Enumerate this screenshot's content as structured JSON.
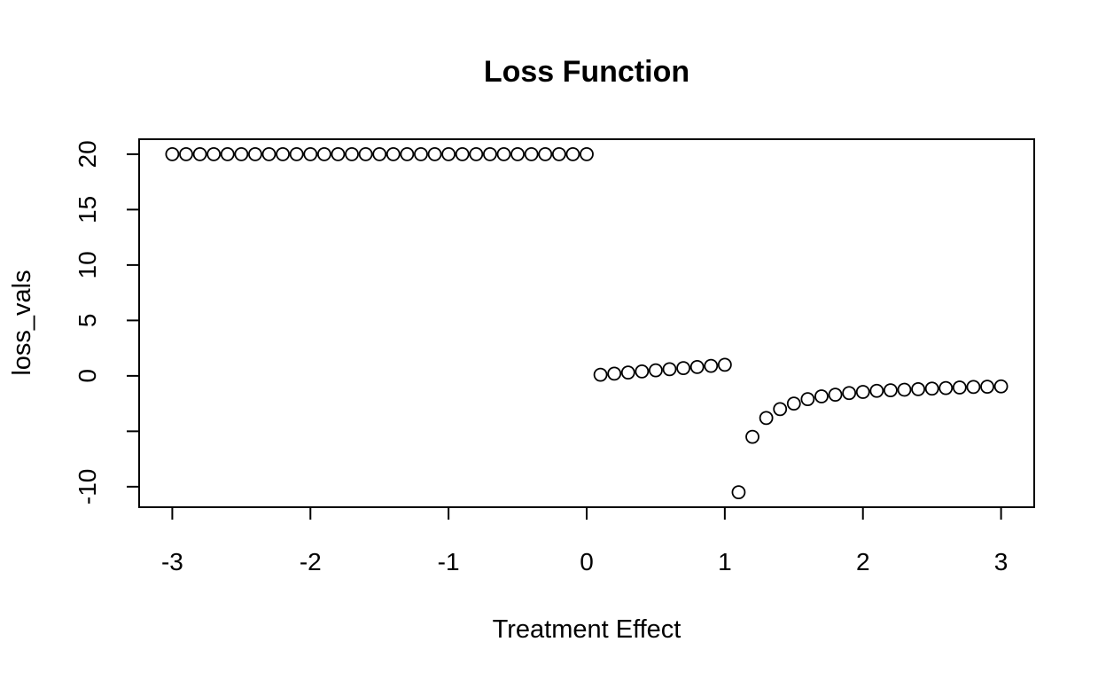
{
  "chart_data": {
    "type": "scatter",
    "title": "Loss Function",
    "xlabel": "Treatment Effect",
    "ylabel": "loss_vals",
    "xlim": [
      -3.24,
      3.24
    ],
    "ylim": [
      -11.85,
      21.35
    ],
    "xticks": [
      -3,
      -2,
      -1,
      0,
      1,
      2,
      3
    ],
    "xtick_labels": [
      "-3",
      "-2",
      "-1",
      "0",
      "1",
      "2",
      "3"
    ],
    "yticks": [
      -10,
      -5,
      0,
      5,
      10,
      15,
      20
    ],
    "ytick_labels": [
      "-10",
      "",
      "0",
      "5",
      "10",
      "15",
      "20"
    ],
    "grid": false,
    "legend": "none",
    "marker": "open-circle",
    "x": [
      -3.0,
      -2.9,
      -2.8,
      -2.7,
      -2.6,
      -2.5,
      -2.4,
      -2.3,
      -2.2,
      -2.1,
      -2.0,
      -1.9,
      -1.8,
      -1.7,
      -1.6,
      -1.5,
      -1.4,
      -1.3,
      -1.2,
      -1.1,
      -1.0,
      -0.9,
      -0.8,
      -0.7,
      -0.6,
      -0.5,
      -0.4,
      -0.3,
      -0.2,
      -0.1,
      0.0,
      0.1,
      0.2,
      0.3,
      0.4,
      0.5,
      0.6,
      0.7,
      0.8,
      0.9,
      1.0,
      1.1,
      1.2,
      1.3,
      1.4,
      1.5,
      1.6,
      1.7,
      1.8,
      1.9,
      2.0,
      2.1,
      2.2,
      2.3,
      2.4,
      2.5,
      2.6,
      2.7,
      2.8,
      2.9,
      3.0
    ],
    "y": [
      20,
      20,
      20,
      20,
      20,
      20,
      20,
      20,
      20,
      20,
      20,
      20,
      20,
      20,
      20,
      20,
      20,
      20,
      20,
      20,
      20,
      20,
      20,
      20,
      20,
      20,
      20,
      20,
      20,
      20,
      20,
      0.1,
      0.2,
      0.3,
      0.4,
      0.5,
      0.6,
      0.7,
      0.8,
      0.9,
      1.0,
      -10.5,
      -5.5,
      -3.8,
      -3.0,
      -2.5,
      -2.1,
      -1.85,
      -1.7,
      -1.55,
      -1.45,
      -1.35,
      -1.3,
      -1.25,
      -1.2,
      -1.15,
      -1.1,
      -1.05,
      -1.0,
      -0.98,
      -0.95
    ]
  }
}
